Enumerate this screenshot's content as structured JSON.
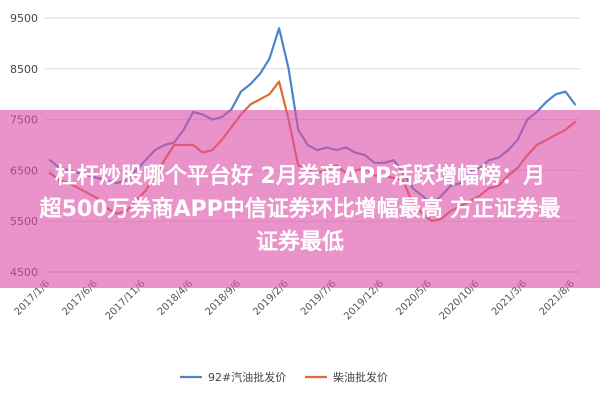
{
  "chart_data": {
    "type": "line",
    "ylim": [
      4500,
      9500
    ],
    "yticks": [
      "9500",
      "8500",
      "7500",
      "6500",
      "5500",
      "4500"
    ],
    "x_tick_labels": [
      "2017/1/6",
      "2017/6/6",
      "2017/11/6",
      "2018/4/6",
      "2018/9/6",
      "2019/2/6",
      "2019/7/6",
      "2019/12/6",
      "2020/5/6",
      "2020/10/6",
      "2021/3/6",
      "2021/8/6"
    ],
    "x": [
      "2017/1/6",
      "2017/2/6",
      "2017/3/6",
      "2017/4/6",
      "2017/5/6",
      "2017/6/6",
      "2017/7/6",
      "2017/8/6",
      "2017/9/6",
      "2017/10/6",
      "2017/11/6",
      "2017/12/6",
      "2018/1/6",
      "2018/2/6",
      "2018/3/6",
      "2018/4/6",
      "2018/5/6",
      "2018/6/6",
      "2018/7/6",
      "2018/8/6",
      "2018/9/6",
      "2018/10/6",
      "2018/11/6",
      "2018/12/6",
      "2019/1/6",
      "2019/2/6",
      "2019/3/6",
      "2019/4/6",
      "2019/5/6",
      "2019/6/6",
      "2019/7/6",
      "2019/8/6",
      "2019/9/6",
      "2019/10/6",
      "2019/11/6",
      "2019/12/6",
      "2020/1/6",
      "2020/2/6",
      "2020/3/6",
      "2020/4/6",
      "2020/5/6",
      "2020/6/6",
      "2020/7/6",
      "2020/8/6",
      "2020/9/6",
      "2020/10/6",
      "2020/11/6",
      "2020/12/6",
      "2021/1/6",
      "2021/2/6",
      "2021/3/6",
      "2021/4/6",
      "2021/5/6",
      "2021/6/6",
      "2021/7/6",
      "2021/8/6"
    ],
    "series": [
      {
        "name": "92#汽油批发价",
        "color": "#4a86c5",
        "values": [
          6700,
          6550,
          6500,
          6450,
          6400,
          6350,
          6300,
          6250,
          6300,
          6500,
          6700,
          6900,
          7000,
          7050,
          7300,
          7650,
          7600,
          7500,
          7550,
          7700,
          8050,
          8200,
          8400,
          8700,
          9300,
          8500,
          7300,
          7000,
          6900,
          6950,
          6900,
          6950,
          6850,
          6800,
          6650,
          6650,
          6700,
          6450,
          6150,
          6000,
          5850,
          6000,
          6200,
          6250,
          6500,
          6550,
          6700,
          6750,
          6900,
          7100,
          7500,
          7650,
          7850,
          8000,
          8050,
          7800
        ]
      },
      {
        "name": "柴油批发价",
        "color": "#e06a2e",
        "values": [
          6450,
          6300,
          6250,
          6150,
          6050,
          5950,
          5750,
          5650,
          5700,
          5900,
          6100,
          6400,
          6700,
          7000,
          7000,
          7000,
          6850,
          6900,
          7100,
          7350,
          7600,
          7800,
          7900,
          8000,
          8250,
          7500,
          6600,
          6500,
          6450,
          6500,
          6600,
          6450,
          6500,
          6550,
          6400,
          6400,
          6350,
          6300,
          5850,
          5650,
          5500,
          5550,
          5700,
          5800,
          5900,
          6000,
          6150,
          6200,
          6400,
          6550,
          6800,
          7000,
          7100,
          7200,
          7300,
          7450
        ]
      }
    ],
    "grid": "horizontal"
  },
  "banner": {
    "line1": "杜杆炒股哪个平台好 2月券商APP活跃增幅榜：月",
    "line2": "超500万券商APP中信证券环比增幅最高 方正证券最",
    "line3": "证券最低"
  }
}
